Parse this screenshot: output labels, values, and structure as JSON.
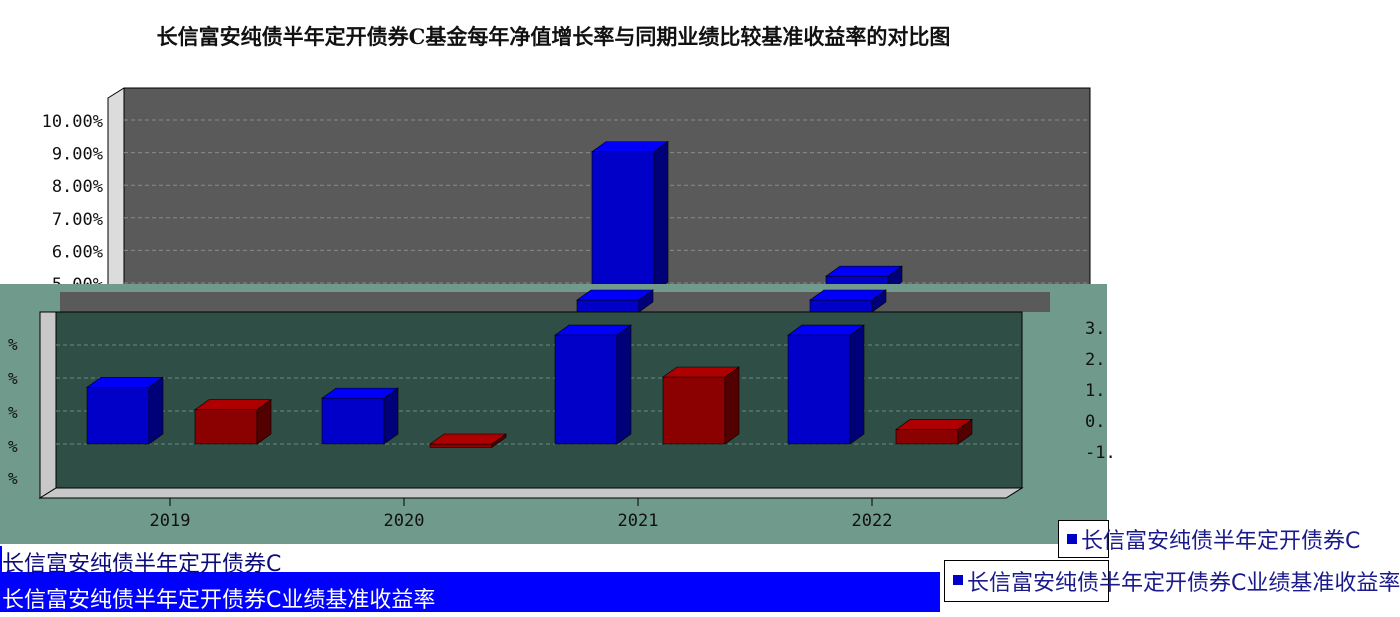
{
  "chart_data": {
    "type": "bar",
    "title": "长信富安纯债半年定开债券C基金每年净值增长率与同期业绩比较基准收益率的对比图",
    "categories": [
      "2019",
      "2020",
      "2021",
      "2022"
    ],
    "series": [
      {
        "name": "长信富安纯债半年定开债券C",
        "color": "#0000c8",
        "values": [
          1.72,
          1.39,
          9.03,
          5.21
        ]
      },
      {
        "name": "长信富安纯债半年定开债券C业绩基准收益率",
        "color": "#8b0000",
        "values": [
          1.04,
          -0.04,
          2.03,
          0.44
        ]
      }
    ],
    "ylim": [
      -1.0,
      10.0
    ],
    "y_ticks": [
      "10.00%",
      "9.00%",
      "8.00%",
      "7.00%",
      "6.00%",
      "5.00%"
    ],
    "right_ticks": [
      "3.",
      "2.",
      "1.",
      "0.",
      "-1."
    ],
    "grid": true,
    "legend_position": "bottom"
  },
  "colors": {
    "upper_plot": "#5a5a5a",
    "lower_plot": "#2f4f46",
    "frame": "#6f9a8c",
    "legend_band": "#0000ff"
  }
}
